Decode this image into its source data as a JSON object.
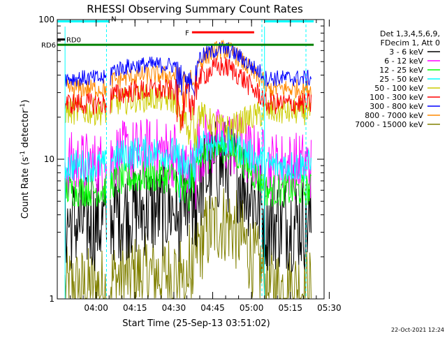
{
  "chart_data": {
    "type": "line",
    "title": "RHESSI Observing Summary Count Rates",
    "xlabel": "Start Time (25-Sep-13 03:51:02)",
    "ylabel": "Count Rate (s",
    "ylabel_sup": "-1",
    "ylabel_tail": " detector",
    "ylabel_end": ")",
    "yscale": "log",
    "ylim": [
      1,
      100
    ],
    "yticks": [
      {
        "value": 1,
        "label": "1"
      },
      {
        "value": 10,
        "label": "10"
      },
      {
        "value": 100,
        "label": "100"
      }
    ],
    "xlim_minutes": [
      -6,
      97
    ],
    "xticks": [
      {
        "minute": 9,
        "label": "04:00"
      },
      {
        "minute": 24,
        "label": "04:15"
      },
      {
        "minute": 39,
        "label": "04:30"
      },
      {
        "minute": 54,
        "label": "04:45"
      },
      {
        "minute": 69,
        "label": "05:00"
      },
      {
        "minute": 84,
        "label": "05:15"
      },
      {
        "minute": 99,
        "label": "05:30"
      }
    ],
    "info_lines": [
      "Det 1,3,4,5,6,9,",
      "FDecim 1, Att 0"
    ],
    "date_stamp": "22-Oct-2021 12:24",
    "series": [
      {
        "name": "3 - 6 keV",
        "color": "#000000"
      },
      {
        "name": "6 - 12 keV",
        "color": "#ff00ff"
      },
      {
        "name": "12 - 25 keV",
        "color": "#00ff00"
      },
      {
        "name": "25 - 50 keV",
        "color": "#00ffff"
      },
      {
        "name": "50 - 100 keV",
        "color": "#cccc00"
      },
      {
        "name": "100 - 300 keV",
        "color": "#ff0000"
      },
      {
        "name": "300 - 800 keV",
        "color": "#0000ff"
      },
      {
        "name": "800 - 7000 keV",
        "color": "#ff8800"
      },
      {
        "name": "7000 - 15000 keV",
        "color": "#808000"
      }
    ],
    "flags": [
      {
        "label": "N",
        "color": "#00ffff",
        "segments": [
          [
            -6,
            14
          ],
          [
            74,
            93
          ]
        ],
        "level": 97
      },
      {
        "label": "F",
        "color": "#ff0000",
        "segments": [
          [
            46,
            70
          ]
        ],
        "level": 81
      },
      {
        "label": "RD0",
        "color": "#000000",
        "segments": [
          [
            -6,
            -3
          ]
        ],
        "level": 72
      },
      {
        "label": "RD6",
        "color": "#008000",
        "segments": [
          [
            -6,
            93
          ]
        ],
        "level": 66
      }
    ],
    "vlines_dashed": [
      13,
      73,
      90
    ],
    "vlines_solid_cyan": [
      -3,
      74
    ]
  }
}
